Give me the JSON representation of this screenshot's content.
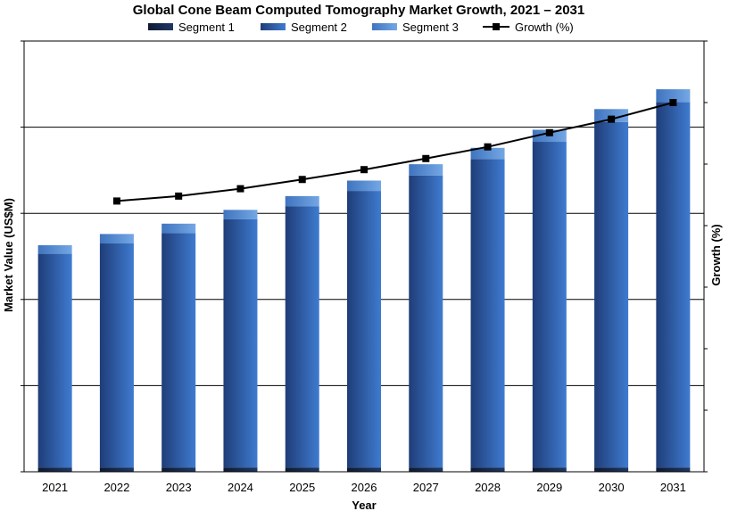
{
  "chart_data": {
    "type": "bar",
    "stacked": true,
    "title": "Global Cone Beam Computed Tomography Market Growth, 2021 – 2031",
    "xlabel": "Year",
    "ylabel": "Market Value (US$M)",
    "y2label": "Growth (%)",
    "categories": [
      "2021",
      "2022",
      "2023",
      "2024",
      "2025",
      "2026",
      "2027",
      "2028",
      "2029",
      "2030",
      "2031"
    ],
    "ylim": [
      0,
      500
    ],
    "y2lim": [
      0,
      7
    ],
    "grid": "horizontal",
    "legend_position": "top",
    "series": [
      {
        "name": "Segment 1",
        "type": "bar",
        "axis": "left",
        "color": "#1f3864",
        "values": [
          5,
          5,
          5,
          5,
          5,
          5,
          5,
          5,
          5,
          5,
          5
        ]
      },
      {
        "name": "Segment 2",
        "type": "bar",
        "axis": "left",
        "color": "#3f7bd0",
        "values": [
          248,
          260,
          272,
          288,
          303,
          321,
          339,
          358,
          378,
          401,
          424
        ]
      },
      {
        "name": "Segment 3",
        "type": "bar",
        "axis": "left",
        "color": "#74a7e4",
        "values": [
          10,
          11,
          11,
          11,
          12,
          12,
          13,
          13,
          14,
          15,
          15
        ]
      },
      {
        "name": "Growth (%)",
        "type": "line",
        "axis": "right",
        "color": "#000000",
        "values": [
          null,
          4.4,
          4.48,
          4.6,
          4.75,
          4.91,
          5.09,
          5.28,
          5.51,
          5.73,
          6.0
        ]
      }
    ]
  }
}
